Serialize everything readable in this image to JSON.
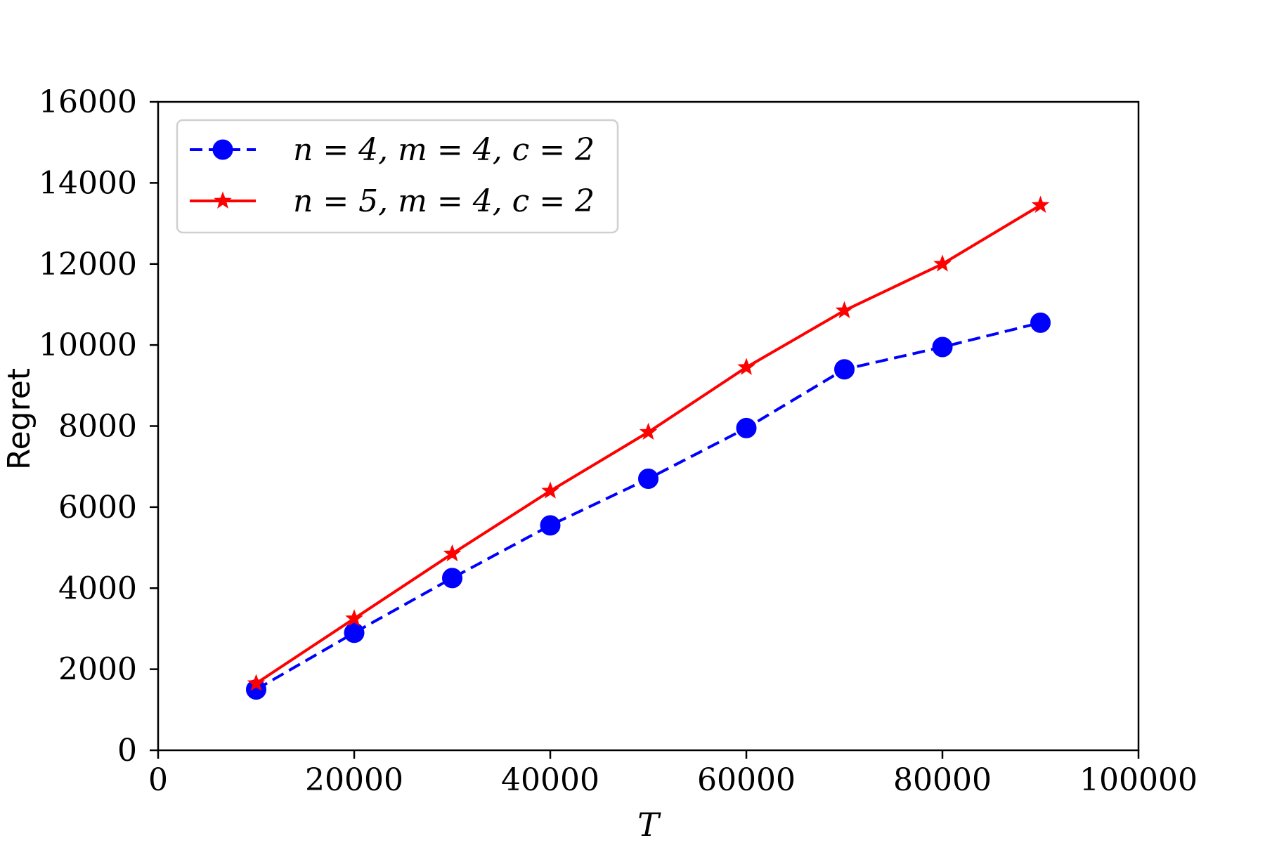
{
  "chart_data": {
    "type": "line",
    "title": "",
    "xlabel": "T",
    "ylabel": "Regret",
    "xlim": [
      0,
      100000
    ],
    "ylim": [
      0,
      16000
    ],
    "xticks": [
      0,
      20000,
      40000,
      60000,
      80000,
      100000
    ],
    "yticks": [
      0,
      2000,
      4000,
      6000,
      8000,
      10000,
      12000,
      14000,
      16000
    ],
    "xtick_labels": [
      "0",
      "20000",
      "40000",
      "60000",
      "80000",
      "100000"
    ],
    "ytick_labels": [
      "0",
      "2000",
      "4000",
      "6000",
      "8000",
      "10000",
      "12000",
      "14000",
      "16000"
    ],
    "grid": false,
    "legend_position": "top-left",
    "x": [
      10000,
      20000,
      30000,
      40000,
      50000,
      60000,
      70000,
      80000,
      90000
    ],
    "series": [
      {
        "name": "n = 4, m = 4, c = 2",
        "color": "#0000ff",
        "line_style": "dashed",
        "marker": "circle",
        "values": [
          1500,
          2900,
          4250,
          5550,
          6700,
          7950,
          9400,
          9950,
          10550
        ]
      },
      {
        "name": "n = 5, m = 4, c = 2",
        "color": "#ff0000",
        "line_style": "solid",
        "marker": "star",
        "values": [
          1650,
          3250,
          4850,
          6400,
          7850,
          9450,
          10850,
          12000,
          13450
        ]
      }
    ]
  }
}
